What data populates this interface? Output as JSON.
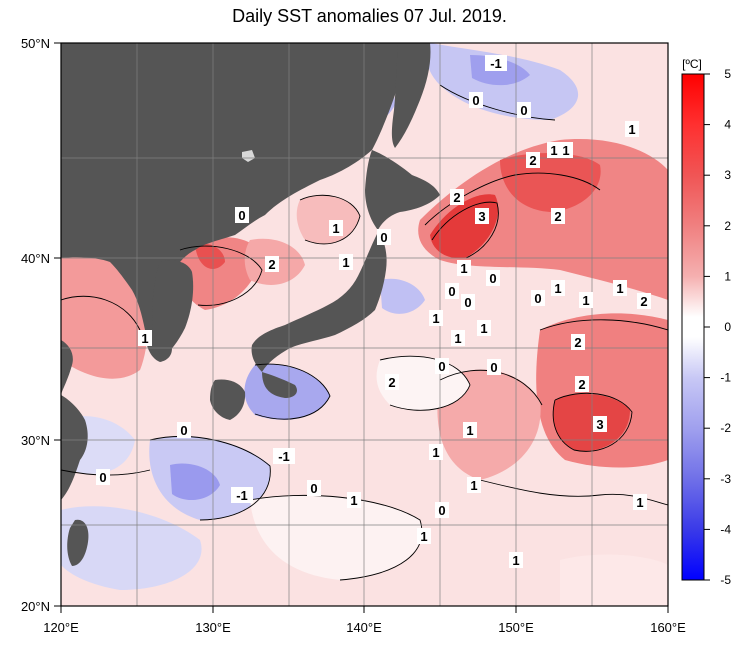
{
  "title": "Daily SST anomalies 07 Jul. 2019.",
  "colorbar": {
    "unit": "[ºC]",
    "ticks": [
      "5",
      "4",
      "3",
      "2",
      "1",
      "0",
      "-1",
      "-2",
      "-3",
      "-4",
      "-5"
    ],
    "colors": [
      "#ff0000",
      "#ff2a2a",
      "#ff4a4a",
      "#f26464",
      "#f08080",
      "#f29a9a",
      "#f5b9b9",
      "#fad8d8",
      "#ffffff",
      "#ffffff",
      "#d9d9fa",
      "#bfbff5",
      "#9f9fef",
      "#8080ea",
      "#6060e6",
      "#3a3ae6",
      "#1010f5",
      "#0000ff"
    ]
  },
  "axes": {
    "lon_labels": [
      "120°E",
      "130°E",
      "140°E",
      "150°E",
      "160°E"
    ],
    "lat_labels": [
      "50°N",
      "40°N",
      "30°N",
      "20°N"
    ]
  },
  "colors": {
    "land": "#555555",
    "ocean_base": "#fbe6e6",
    "warm_strong": "#ee4a4a",
    "warm_mid": "#f28c8c",
    "warm_light": "#f7bcbc",
    "cool_light": "#d8d8f6",
    "cool_mid": "#a8a8ee",
    "cool_strong": "#7070e6",
    "grid": "#808080"
  },
  "contour_labels": [
    {
      "text": "-1"
    },
    {
      "text": "0"
    },
    {
      "text": "0"
    },
    {
      "text": "1"
    },
    {
      "text": "1"
    },
    {
      "text": "1"
    },
    {
      "text": "2"
    },
    {
      "text": "2"
    },
    {
      "text": "3"
    },
    {
      "text": "2"
    },
    {
      "text": "0"
    },
    {
      "text": "1"
    },
    {
      "text": "0"
    },
    {
      "text": "2"
    },
    {
      "text": "1"
    },
    {
      "text": "1"
    },
    {
      "text": "0"
    },
    {
      "text": "1"
    },
    {
      "text": "0"
    },
    {
      "text": "0"
    },
    {
      "text": "1"
    },
    {
      "text": "1"
    },
    {
      "text": "2"
    },
    {
      "text": "1"
    },
    {
      "text": "1"
    },
    {
      "text": "1"
    },
    {
      "text": "0"
    },
    {
      "text": "1"
    },
    {
      "text": "2"
    },
    {
      "text": "2"
    },
    {
      "text": "1"
    },
    {
      "text": "0"
    },
    {
      "text": "0"
    },
    {
      "text": "2"
    },
    {
      "text": "3"
    },
    {
      "text": "0"
    },
    {
      "text": "1"
    },
    {
      "text": "-1"
    },
    {
      "text": "1"
    },
    {
      "text": "0"
    },
    {
      "text": "-1"
    },
    {
      "text": "0"
    },
    {
      "text": "1"
    },
    {
      "text": "1"
    },
    {
      "text": "0"
    },
    {
      "text": "1"
    },
    {
      "text": "1"
    }
  ]
}
